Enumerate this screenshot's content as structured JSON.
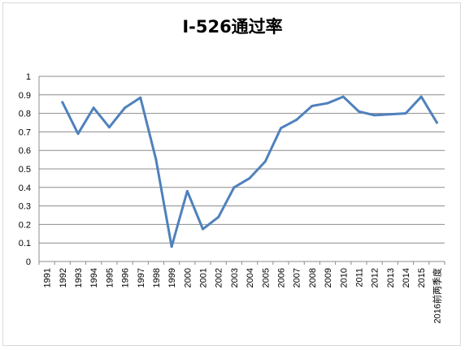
{
  "chart_data": {
    "type": "line",
    "title": "I-526通过率",
    "xlabel": "",
    "ylabel": "",
    "ylim": [
      0,
      1
    ],
    "yticks": [
      "0",
      "0.1",
      "0.2",
      "0.3",
      "0.4",
      "0.5",
      "0.6",
      "0.7",
      "0.8",
      "0.9",
      "1"
    ],
    "categories": [
      "1991",
      "1992",
      "1993",
      "1994",
      "1995",
      "1996",
      "1997",
      "1998",
      "1999",
      "2000",
      "2001",
      "2002",
      "2003",
      "2004",
      "2005",
      "2006",
      "2007",
      "2008",
      "2009",
      "2010",
      "2011",
      "2012",
      "2013",
      "2014",
      "2015",
      "2016前两季度"
    ],
    "series": [
      {
        "values": [
          null,
          0.86,
          0.69,
          0.83,
          0.725,
          0.83,
          0.885,
          0.55,
          0.08,
          0.38,
          0.175,
          0.24,
          0.4,
          0.45,
          0.54,
          0.72,
          0.765,
          0.84,
          0.855,
          0.89,
          0.81,
          0.79,
          0.795,
          0.8,
          0.89,
          0.75
        ],
        "color": "#4f81bd"
      }
    ],
    "grid": true,
    "legend": "none"
  }
}
